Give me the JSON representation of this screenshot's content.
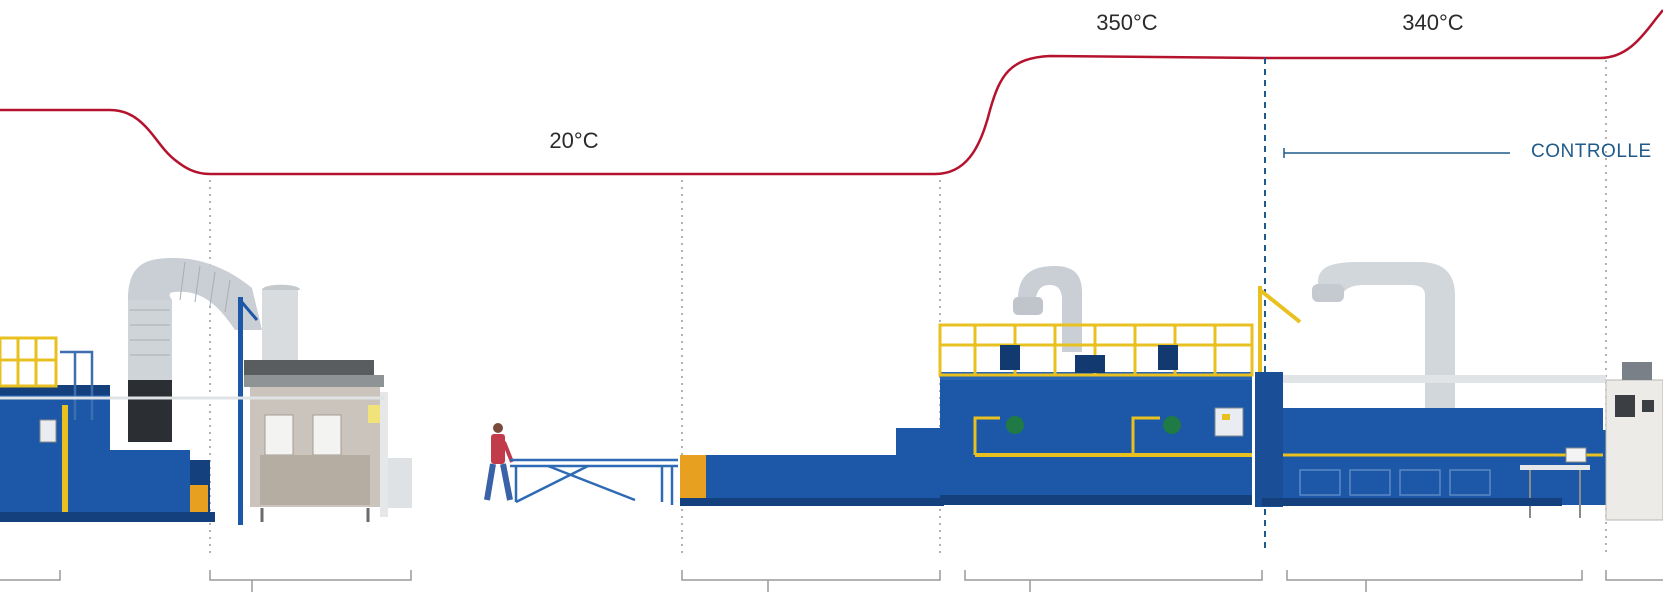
{
  "temperature_profile": {
    "labels": [
      "20°C",
      "350°C",
      "340°C"
    ],
    "curve_color": "#b5122e"
  },
  "zone": {
    "label": "CONTROLLE",
    "line_color": "#1f5a8a"
  },
  "colors": {
    "machine_blue": "#1d58a8",
    "machine_dark_blue": "#14407d",
    "railing_yellow": "#e8c020",
    "duct_gray": "#cfd4d8",
    "bracket_gray": "#9a9a9a"
  },
  "icons": [
    "worker-icon"
  ]
}
